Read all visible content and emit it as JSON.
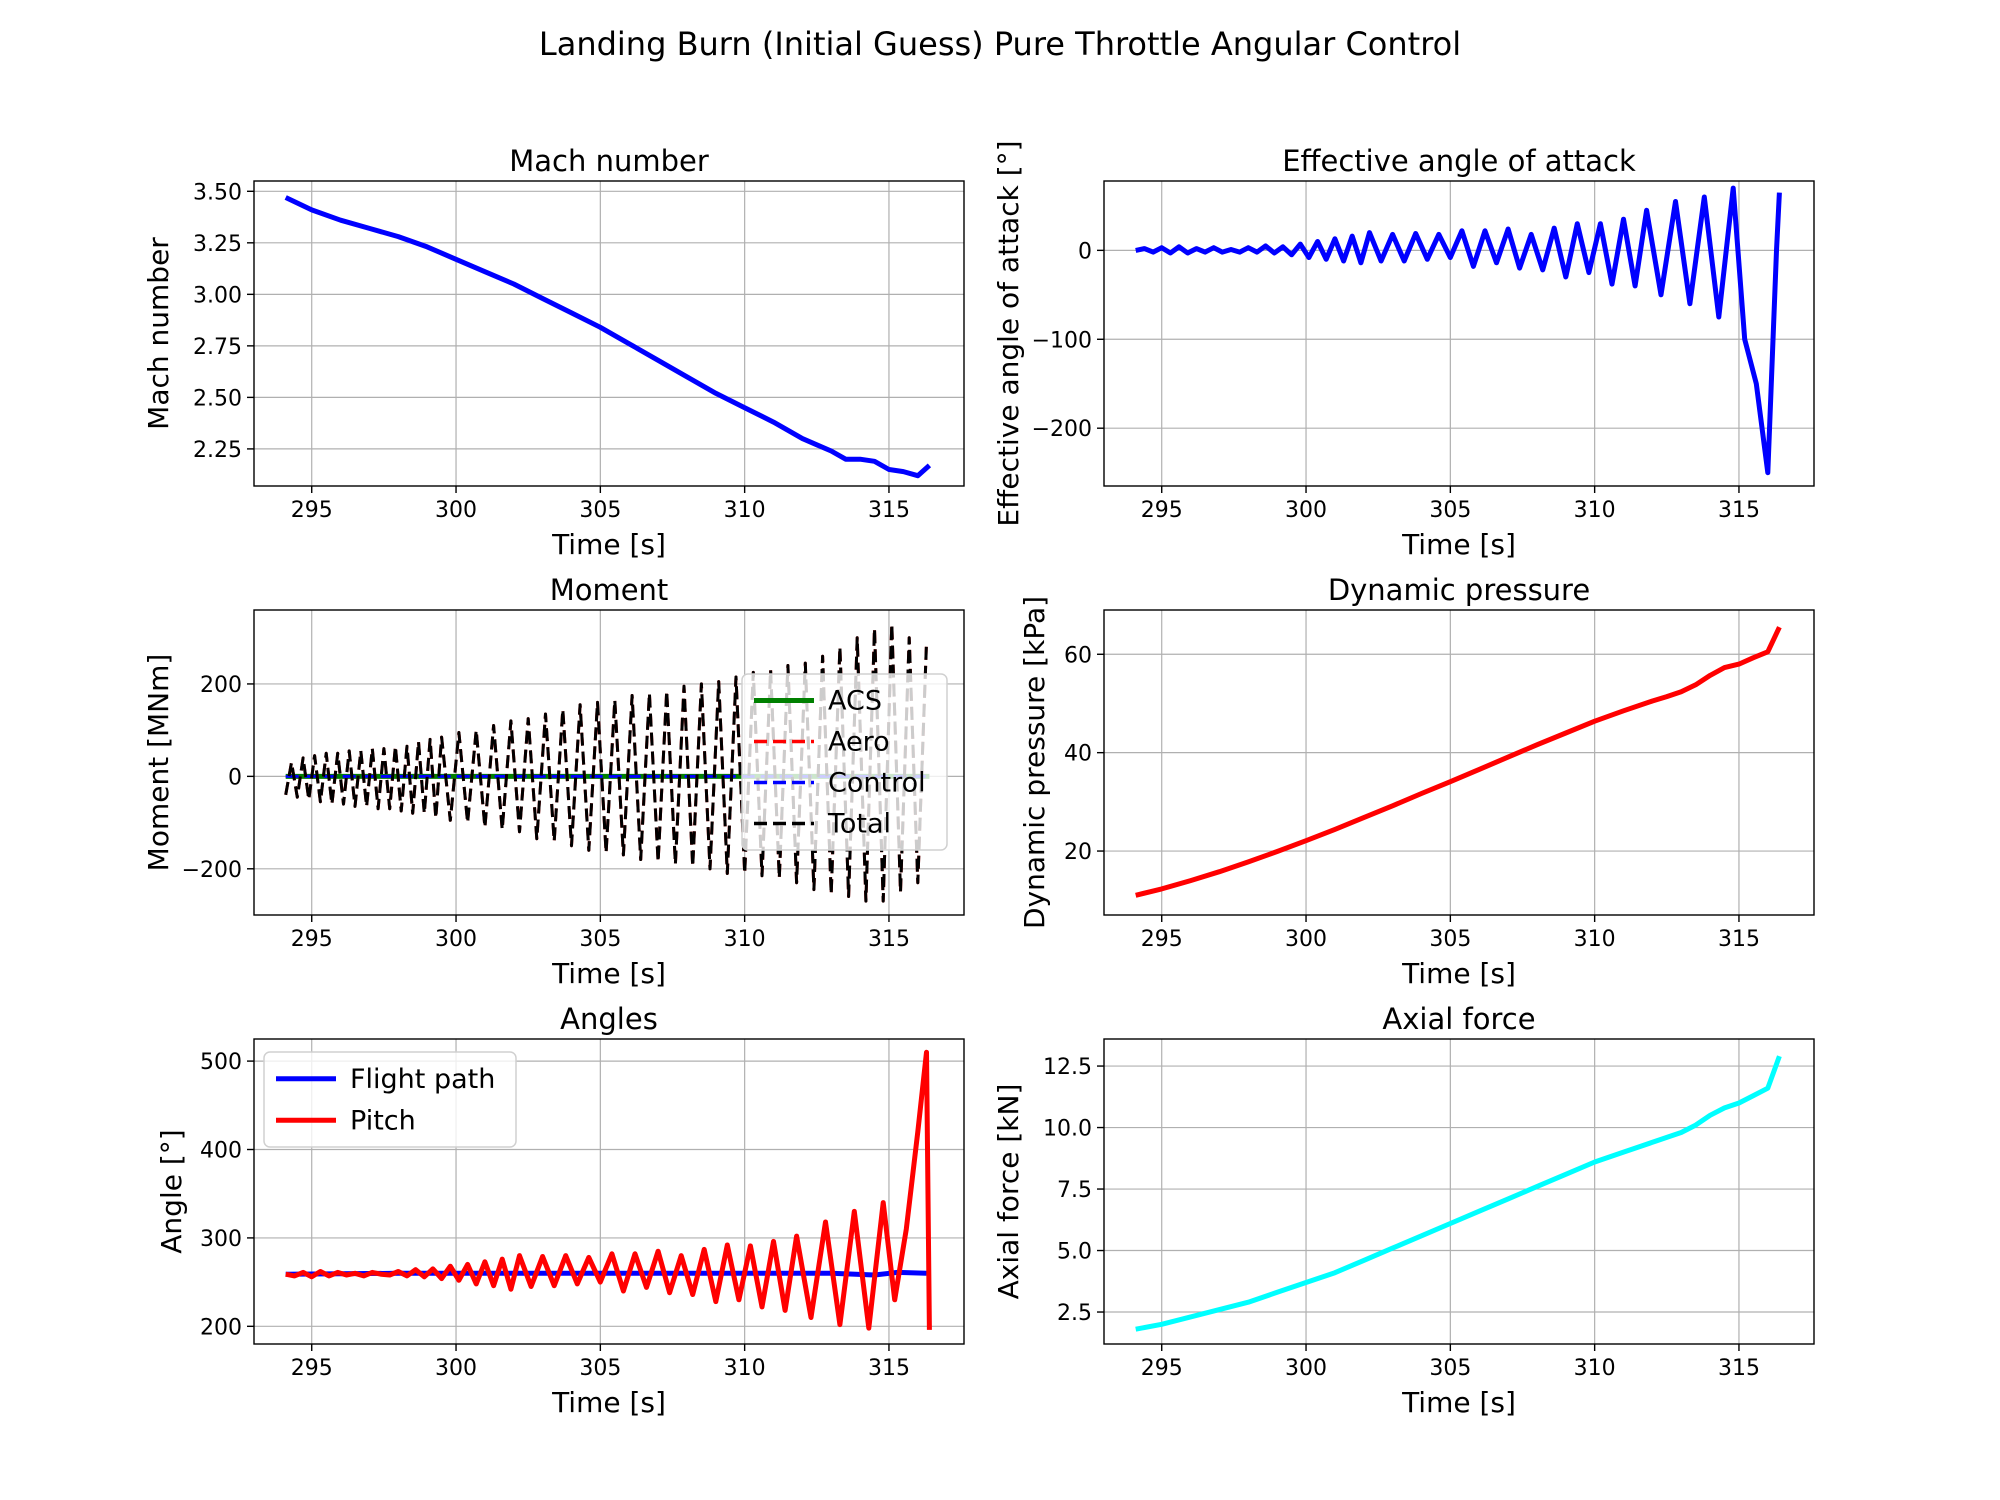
{
  "figure": {
    "title": "Landing Burn (Initial Guess) Pure Throttle Angular Control"
  },
  "chart_data": [
    {
      "type": "line",
      "title": "Mach number",
      "xlabel": "Time [s]",
      "ylabel": "Mach number",
      "xlim": [
        293.0,
        317.6
      ],
      "ylim": [
        2.07,
        3.55
      ],
      "xticks": [
        295,
        300,
        305,
        310,
        315
      ],
      "xtick_labels": [
        "295",
        "300",
        "305",
        "310",
        "315"
      ],
      "yticks": [
        2.25,
        2.5,
        2.75,
        3.0,
        3.25,
        3.5
      ],
      "ytick_labels": [
        "2.25",
        "2.50",
        "2.75",
        "3.00",
        "3.25",
        "3.50"
      ],
      "grid": true,
      "series": [
        {
          "color": "#0000ff",
          "style": "solid",
          "x": [
            294.1,
            295,
            296,
            297,
            298,
            299,
            300,
            301,
            302,
            303,
            304,
            305,
            306,
            307,
            308,
            309,
            310,
            311,
            312,
            312.5,
            313,
            313.5,
            314,
            314.5,
            315,
            315.5,
            316,
            316.4
          ],
          "y": [
            3.47,
            3.41,
            3.36,
            3.32,
            3.28,
            3.23,
            3.17,
            3.11,
            3.05,
            2.98,
            2.91,
            2.84,
            2.76,
            2.68,
            2.6,
            2.52,
            2.45,
            2.38,
            2.3,
            2.27,
            2.24,
            2.2,
            2.2,
            2.19,
            2.15,
            2.14,
            2.12,
            2.17
          ]
        }
      ]
    },
    {
      "type": "line",
      "title": "Effective angle of attack",
      "xlabel": "Time [s]",
      "ylabel": "Effective angle of attack [°]",
      "xlim": [
        293.0,
        317.6
      ],
      "ylim": [
        -265,
        78
      ],
      "xticks": [
        295,
        300,
        305,
        310,
        315
      ],
      "xtick_labels": [
        "295",
        "300",
        "305",
        "310",
        "315"
      ],
      "yticks": [
        -200,
        -100,
        0
      ],
      "ytick_labels": [
        "−200",
        "−100",
        "0"
      ],
      "grid": true,
      "series": [
        {
          "color": "#0000ff",
          "style": "solid",
          "x": [
            294.1,
            294.4,
            294.7,
            295.0,
            295.3,
            295.6,
            295.9,
            296.2,
            296.5,
            296.8,
            297.1,
            297.4,
            297.7,
            298.0,
            298.3,
            298.6,
            298.9,
            299.2,
            299.5,
            299.8,
            300.1,
            300.4,
            300.7,
            301.0,
            301.3,
            301.6,
            301.9,
            302.2,
            302.6,
            303.0,
            303.4,
            303.8,
            304.2,
            304.6,
            305.0,
            305.4,
            305.8,
            306.2,
            306.6,
            307.0,
            307.4,
            307.8,
            308.2,
            308.6,
            309.0,
            309.4,
            309.8,
            310.2,
            310.6,
            311.0,
            311.4,
            311.8,
            312.3,
            312.8,
            313.3,
            313.8,
            314.3,
            314.8,
            315.2,
            315.6,
            316.0,
            316.3,
            316.4
          ],
          "y": [
            0,
            2,
            -2,
            3,
            -3,
            4,
            -3,
            2,
            -2,
            3,
            -2,
            1,
            -2,
            3,
            -2,
            5,
            -3,
            4,
            -5,
            7,
            -8,
            10,
            -10,
            13,
            -12,
            16,
            -14,
            20,
            -12,
            18,
            -12,
            19,
            -10,
            18,
            -8,
            22,
            -18,
            22,
            -14,
            24,
            -20,
            18,
            -22,
            25,
            -30,
            30,
            -25,
            30,
            -38,
            35,
            -40,
            45,
            -50,
            55,
            -60,
            60,
            -75,
            70,
            -100,
            -150,
            -250,
            0,
            65
          ]
        }
      ]
    },
    {
      "type": "line",
      "title": "Moment",
      "xlabel": "Time [s]",
      "ylabel": "Moment [MNm]",
      "xlim": [
        293.0,
        317.6
      ],
      "ylim": [
        -300,
        360
      ],
      "xticks": [
        295,
        300,
        305,
        310,
        315
      ],
      "xtick_labels": [
        "295",
        "300",
        "305",
        "310",
        "315"
      ],
      "yticks": [
        -200,
        0,
        200
      ],
      "ytick_labels": [
        "−200",
        "0",
        "200"
      ],
      "grid": true,
      "legend": "right",
      "series": [
        {
          "name": "ACS",
          "color": "#008000",
          "style": "solid",
          "x": [
            294.1,
            316.4
          ],
          "y": [
            0,
            0
          ]
        },
        {
          "name": "Aero",
          "color": "#ff0000",
          "style": "dashed",
          "x": [
            294.1,
            294.3,
            294.5,
            294.7,
            294.9,
            295.1,
            295.3,
            295.5,
            295.7,
            295.9,
            296.1,
            296.3,
            296.5,
            296.7,
            296.9,
            297.1,
            297.3,
            297.5,
            297.7,
            297.9,
            298.1,
            298.3,
            298.5,
            298.7,
            298.9,
            299.1,
            299.3,
            299.5,
            299.8,
            300.1,
            300.4,
            300.7,
            301.0,
            301.3,
            301.6,
            301.9,
            302.2,
            302.5,
            302.8,
            303.1,
            303.4,
            303.7,
            304.0,
            304.3,
            304.6,
            304.9,
            305.2,
            305.5,
            305.8,
            306.1,
            306.4,
            306.7,
            307.0,
            307.3,
            307.6,
            307.9,
            308.2,
            308.5,
            308.8,
            309.1,
            309.4,
            309.7,
            310.0,
            310.3,
            310.6,
            310.9,
            311.2,
            311.5,
            311.8,
            312.1,
            312.4,
            312.7,
            313.0,
            313.3,
            313.6,
            313.9,
            314.2,
            314.5,
            314.8,
            315.1,
            315.4,
            315.7,
            316.0,
            316.3
          ],
          "y": [
            -40,
            30,
            -45,
            40,
            -50,
            45,
            -55,
            50,
            -60,
            50,
            -60,
            55,
            -65,
            55,
            -65,
            60,
            -70,
            60,
            -70,
            65,
            -75,
            65,
            -80,
            75,
            -80,
            80,
            -90,
            85,
            -95,
            95,
            -100,
            100,
            -110,
            110,
            -115,
            120,
            -120,
            125,
            -135,
            135,
            -140,
            145,
            -150,
            155,
            -160,
            160,
            -165,
            165,
            -170,
            175,
            -180,
            180,
            -185,
            185,
            -190,
            195,
            -195,
            200,
            -200,
            205,
            -210,
            215,
            -210,
            225,
            -215,
            230,
            -220,
            240,
            -230,
            245,
            -245,
            260,
            -255,
            280,
            -260,
            300,
            -270,
            320,
            -270,
            330,
            -250,
            300,
            -230,
            290
          ]
        },
        {
          "name": "Control",
          "color": "#0000ff",
          "style": "dashed",
          "x": [
            294.1,
            316.4
          ],
          "y": [
            0,
            0
          ]
        },
        {
          "name": "Total",
          "color": "#000000",
          "style": "dashed",
          "x": [
            294.1,
            294.3,
            294.5,
            294.7,
            294.9,
            295.1,
            295.3,
            295.5,
            295.7,
            295.9,
            296.1,
            296.3,
            296.5,
            296.7,
            296.9,
            297.1,
            297.3,
            297.5,
            297.7,
            297.9,
            298.1,
            298.3,
            298.5,
            298.7,
            298.9,
            299.1,
            299.3,
            299.5,
            299.8,
            300.1,
            300.4,
            300.7,
            301.0,
            301.3,
            301.6,
            301.9,
            302.2,
            302.5,
            302.8,
            303.1,
            303.4,
            303.7,
            304.0,
            304.3,
            304.6,
            304.9,
            305.2,
            305.5,
            305.8,
            306.1,
            306.4,
            306.7,
            307.0,
            307.3,
            307.6,
            307.9,
            308.2,
            308.5,
            308.8,
            309.1,
            309.4,
            309.7,
            310.0,
            310.3,
            310.6,
            310.9,
            311.2,
            311.5,
            311.8,
            312.1,
            312.4,
            312.7,
            313.0,
            313.3,
            313.6,
            313.9,
            314.2,
            314.5,
            314.8,
            315.1,
            315.4,
            315.7,
            316.0,
            316.3
          ],
          "y": [
            -40,
            30,
            -45,
            40,
            -50,
            45,
            -55,
            50,
            -60,
            50,
            -60,
            55,
            -65,
            55,
            -65,
            60,
            -70,
            60,
            -70,
            65,
            -75,
            65,
            -80,
            75,
            -80,
            80,
            -90,
            85,
            -95,
            95,
            -100,
            100,
            -110,
            110,
            -115,
            120,
            -120,
            125,
            -135,
            135,
            -140,
            145,
            -150,
            155,
            -160,
            160,
            -165,
            165,
            -170,
            175,
            -180,
            180,
            -185,
            185,
            -190,
            195,
            -195,
            200,
            -200,
            205,
            -210,
            215,
            -210,
            225,
            -215,
            230,
            -220,
            240,
            -230,
            245,
            -245,
            260,
            -255,
            280,
            -260,
            300,
            -270,
            320,
            -270,
            330,
            -250,
            300,
            -230,
            290
          ]
        }
      ]
    },
    {
      "type": "line",
      "title": "Dynamic pressure",
      "xlabel": "Time [s]",
      "ylabel": "Dynamic pressure [kPa]",
      "xlim": [
        293.0,
        317.6
      ],
      "ylim": [
        7,
        69
      ],
      "xticks": [
        295,
        300,
        305,
        310,
        315
      ],
      "xtick_labels": [
        "295",
        "300",
        "305",
        "310",
        "315"
      ],
      "yticks": [
        20,
        40,
        60
      ],
      "ytick_labels": [
        "20",
        "40",
        "60"
      ],
      "grid": true,
      "series": [
        {
          "color": "#ff0000",
          "style": "solid",
          "x": [
            294.1,
            295,
            296,
            297,
            298,
            299,
            300,
            301,
            302,
            303,
            304,
            305,
            306,
            307,
            308,
            309,
            310,
            311,
            312,
            312.5,
            313,
            313.5,
            314,
            314.5,
            315,
            315.5,
            316,
            316.4
          ],
          "y": [
            11,
            12.3,
            14,
            15.8,
            17.8,
            19.9,
            22.1,
            24.4,
            26.8,
            29.2,
            31.7,
            34.1,
            36.6,
            39.1,
            41.6,
            44.0,
            46.4,
            48.5,
            50.5,
            51.4,
            52.4,
            53.8,
            55.7,
            57.3,
            58.0,
            59.3,
            60.5,
            65.5
          ]
        }
      ]
    },
    {
      "type": "line",
      "title": "Angles",
      "xlabel": "Time [s]",
      "ylabel": "Angle [°]",
      "xlim": [
        293.0,
        317.6
      ],
      "ylim": [
        180,
        525
      ],
      "xticks": [
        295,
        300,
        305,
        310,
        315
      ],
      "xtick_labels": [
        "295",
        "300",
        "305",
        "310",
        "315"
      ],
      "yticks": [
        200,
        300,
        400,
        500
      ],
      "ytick_labels": [
        "200",
        "300",
        "400",
        "500"
      ],
      "grid": true,
      "legend": "top-left",
      "series": [
        {
          "name": "Flight path",
          "color": "#0000ff",
          "style": "solid",
          "x": [
            294.1,
            298,
            302,
            306,
            310,
            313,
            314.5,
            315.3,
            316.3
          ],
          "y": [
            259,
            260,
            260,
            260,
            260,
            260,
            258,
            261,
            260
          ]
        },
        {
          "name": "Pitch",
          "color": "#ff0000",
          "style": "solid",
          "x": [
            294.1,
            294.4,
            294.7,
            295.0,
            295.3,
            295.6,
            295.9,
            296.2,
            296.5,
            296.8,
            297.1,
            297.4,
            297.7,
            298.0,
            298.3,
            298.6,
            298.9,
            299.2,
            299.5,
            299.8,
            300.1,
            300.4,
            300.7,
            301.0,
            301.3,
            301.6,
            301.9,
            302.2,
            302.6,
            303.0,
            303.4,
            303.8,
            304.2,
            304.6,
            305.0,
            305.4,
            305.8,
            306.2,
            306.6,
            307.0,
            307.4,
            307.8,
            308.2,
            308.6,
            309.0,
            309.4,
            309.8,
            310.2,
            310.6,
            311.0,
            311.4,
            311.8,
            312.3,
            312.8,
            313.3,
            313.8,
            314.3,
            314.8,
            315.2,
            315.6,
            316.0,
            316.3,
            316.4
          ],
          "y": [
            259,
            257,
            261,
            256,
            262,
            257,
            261,
            258,
            260,
            257,
            261,
            259,
            258,
            262,
            257,
            264,
            256,
            265,
            254,
            268,
            252,
            270,
            248,
            273,
            246,
            276,
            242,
            280,
            245,
            279,
            246,
            280,
            248,
            278,
            250,
            282,
            240,
            282,
            244,
            285,
            238,
            280,
            236,
            287,
            228,
            292,
            230,
            291,
            222,
            296,
            218,
            302,
            210,
            318,
            202,
            330,
            198,
            340,
            230,
            310,
            420,
            510,
            196
          ]
        }
      ]
    },
    {
      "type": "line",
      "title": "Axial force",
      "xlabel": "Time [s]",
      "ylabel": "Axial force [kN]",
      "xlim": [
        293.0,
        317.6
      ],
      "ylim": [
        1.2,
        13.6
      ],
      "xticks": [
        295,
        300,
        305,
        310,
        315
      ],
      "xtick_labels": [
        "295",
        "300",
        "305",
        "310",
        "315"
      ],
      "yticks": [
        2.5,
        5.0,
        7.5,
        10.0,
        12.5
      ],
      "ytick_labels": [
        "2.5",
        "5.0",
        "7.5",
        "10.0",
        "12.5"
      ],
      "grid": true,
      "series": [
        {
          "color": "#00ffff",
          "style": "solid",
          "x": [
            294.1,
            295,
            296,
            297,
            298,
            299,
            300,
            301,
            302,
            303,
            304,
            305,
            306,
            307,
            308,
            309,
            310,
            311,
            312,
            312.5,
            313,
            313.5,
            314,
            314.5,
            315,
            315.5,
            316,
            316.4
          ],
          "y": [
            1.8,
            2.0,
            2.3,
            2.6,
            2.9,
            3.3,
            3.7,
            4.1,
            4.6,
            5.1,
            5.6,
            6.1,
            6.6,
            7.1,
            7.6,
            8.1,
            8.6,
            9.0,
            9.4,
            9.6,
            9.8,
            10.1,
            10.5,
            10.8,
            11.0,
            11.3,
            11.6,
            12.9
          ]
        }
      ]
    }
  ]
}
